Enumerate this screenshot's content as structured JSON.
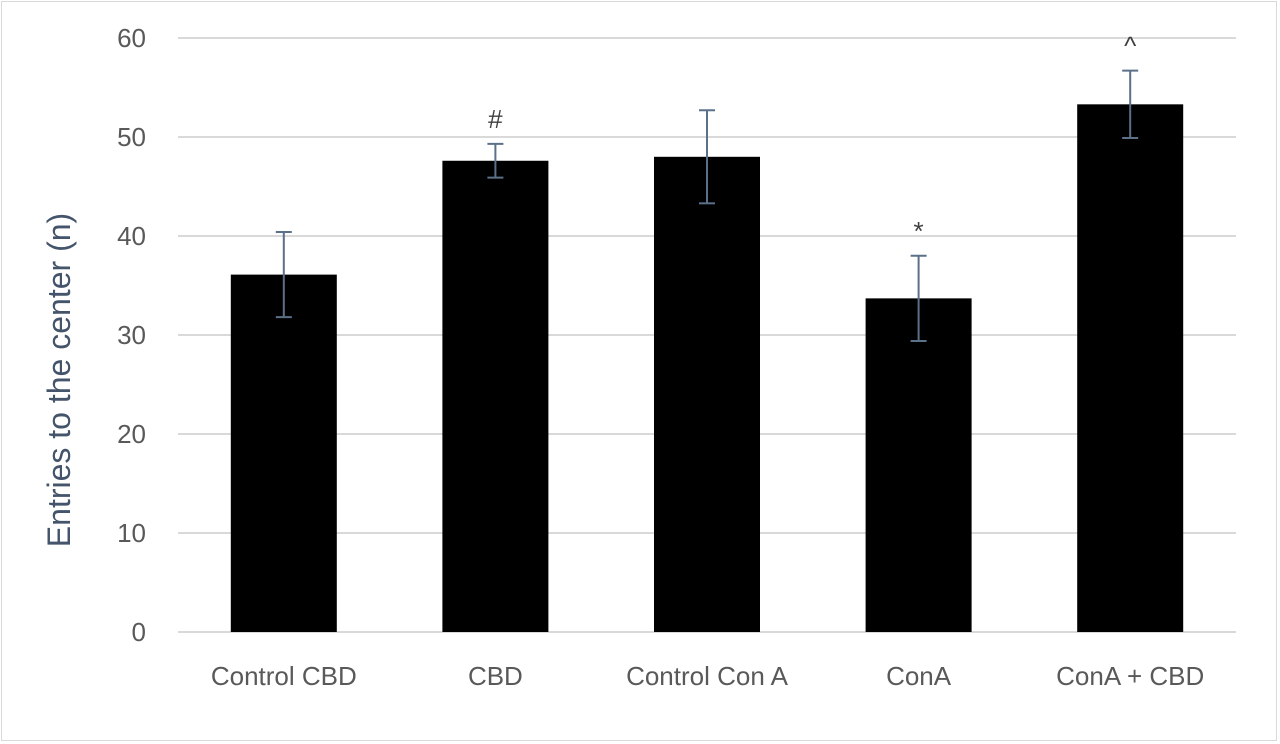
{
  "chart_data": {
    "type": "bar",
    "title": "",
    "xlabel": "",
    "ylabel": "Entries to the center (n)",
    "categories": [
      "Control CBD",
      "CBD",
      "Control Con A",
      "ConA",
      "ConA + CBD"
    ],
    "values": [
      36.1,
      47.6,
      48.0,
      33.7,
      53.3
    ],
    "error": [
      4.3,
      1.7,
      4.7,
      4.3,
      3.4
    ],
    "annotations": [
      "",
      "#",
      "",
      "*",
      "^"
    ],
    "ylim": [
      0,
      60
    ],
    "yticks": [
      0,
      10,
      20,
      30,
      40,
      50,
      60
    ],
    "grid": true,
    "legend": "none",
    "colors": {
      "bar": "#000000",
      "error_bar": "#5b7089",
      "grid": "#d9d9d9",
      "tick_text": "#595959",
      "axis_title": "#44546a"
    }
  }
}
